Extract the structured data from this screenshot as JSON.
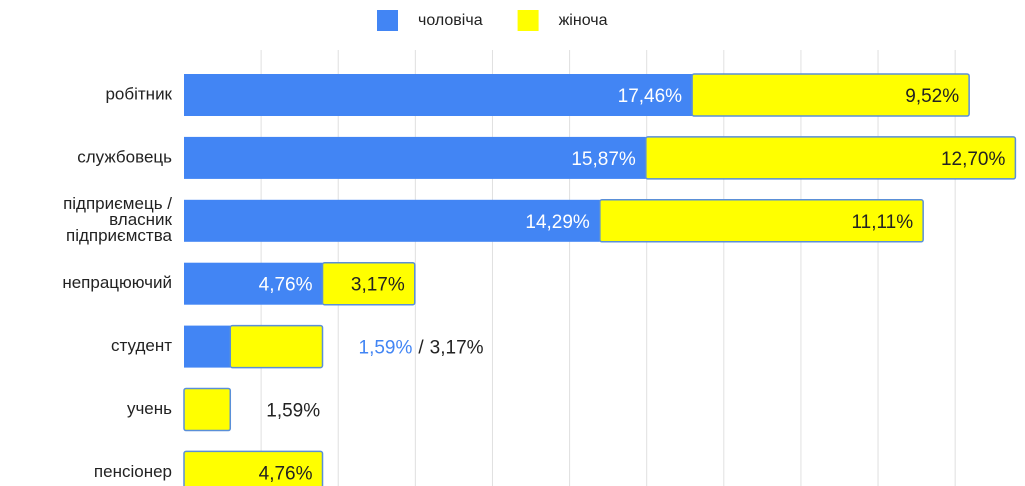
{
  "chart_data": {
    "type": "stacked-bar-horizontal",
    "categories": [
      "робітник",
      "службовець",
      [
        "підприємець /",
        "власник",
        "підприємства"
      ],
      "непрацюючий",
      "студент",
      "учень",
      "пенсіонер"
    ],
    "series": [
      {
        "name": "чоловіча",
        "color": "#4285f4",
        "values": [
          17.46,
          15.87,
          14.29,
          4.76,
          1.59,
          0,
          0
        ],
        "value_labels": [
          "17,46%",
          "15,87%",
          "14,29%",
          "4,76%",
          "1,59%",
          null,
          null
        ]
      },
      {
        "name": "жіноча",
        "color": "#ffff00",
        "values": [
          9.52,
          12.7,
          11.11,
          3.17,
          3.17,
          1.59,
          4.76
        ],
        "value_labels": [
          "9,52%",
          "12,70%",
          "11,11%",
          "3,17%",
          "3,17%",
          "1,59%",
          "4,76%"
        ]
      }
    ],
    "label_separator": "/",
    "xlim": [
      0,
      28.9
    ],
    "xticks": [
      2.65,
      5.3,
      7.95,
      10.6,
      13.25,
      15.9,
      18.55,
      21.2,
      23.85,
      26.5
    ],
    "grid": true,
    "legend": "top"
  }
}
